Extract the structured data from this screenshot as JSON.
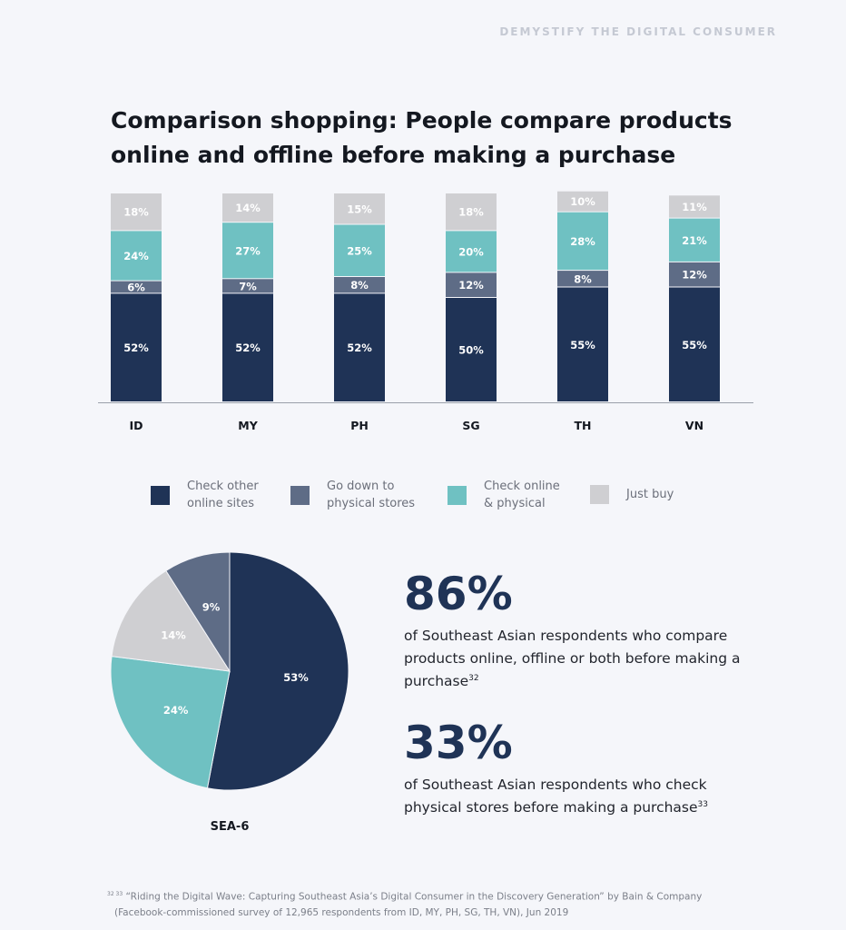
{
  "header": {
    "tag": "DEMYSTIFY THE DIGITAL CONSUMER"
  },
  "title": "Comparison shopping: People compare products online and offline before making a purchase",
  "colors": {
    "check_other_online": "#1f3356",
    "go_down_physical": "#5e6c86",
    "check_online_physical": "#6fc1c2",
    "just_buy": "#cfcfd2",
    "axis": "#9aa0aa"
  },
  "legend": [
    {
      "label": "Check other\nonline sites",
      "color": "#1f3356"
    },
    {
      "label": "Go down to\nphysical stores",
      "color": "#5e6c86"
    },
    {
      "label": "Check online\n& physical",
      "color": "#6fc1c2"
    },
    {
      "label": "Just buy",
      "color": "#cfcfd2"
    }
  ],
  "chart_data": [
    {
      "type": "bar",
      "stacked": true,
      "categories": [
        "ID",
        "MY",
        "PH",
        "SG",
        "TH",
        "VN"
      ],
      "series": [
        {
          "name": "Check other online sites",
          "values": [
            52,
            52,
            52,
            50,
            55,
            55
          ],
          "labels": [
            "52%",
            "52%",
            "52%",
            "50%",
            "55%",
            "55%"
          ]
        },
        {
          "name": "Go down to physical stores",
          "values": [
            6,
            7,
            8,
            12,
            8,
            12
          ],
          "labels": [
            "6%",
            "7%",
            "8%",
            "12%",
            "8%",
            "12%"
          ]
        },
        {
          "name": "Check online & physical",
          "values": [
            24,
            27,
            25,
            20,
            28,
            21
          ],
          "labels": [
            "24%",
            "27%",
            "25%",
            "20%",
            "28%",
            "21%"
          ]
        },
        {
          "name": "Just buy",
          "values": [
            18,
            14,
            15,
            18,
            10,
            11
          ],
          "labels": [
            "18%",
            "14%",
            "15%",
            "18%",
            "10%",
            "11%"
          ]
        }
      ],
      "ylim": [
        0,
        100
      ],
      "grid": false,
      "legend_position": "bottom"
    },
    {
      "type": "pie",
      "label": "SEA-6",
      "slices": [
        {
          "name": "Check other online sites",
          "value": 53,
          "label": "53%"
        },
        {
          "name": "Check online & physical",
          "value": 24,
          "label": "24%"
        },
        {
          "name": "Just buy",
          "value": 14,
          "label": "14%"
        },
        {
          "name": "Go down to physical stores",
          "value": 9,
          "label": "9%"
        }
      ]
    }
  ],
  "stats": [
    {
      "value": "86%",
      "desc": "of Southeast Asian respondents who compare products online, offline or both before making a purchase",
      "ref": "32"
    },
    {
      "value": "33%",
      "desc": "of Southeast Asian respondents who check physical stores before making a purchase",
      "ref": "33"
    }
  ],
  "footnote": {
    "refs": "32 33",
    "line1": "“Riding the Digital Wave: Capturing Southeast Asia’s Digital Consumer in the Discovery Generation” by Bain & Company",
    "line2": "(Facebook-commissioned survey of 12,965 respondents from ID, MY, PH, SG, TH, VN), Jun 2019"
  }
}
